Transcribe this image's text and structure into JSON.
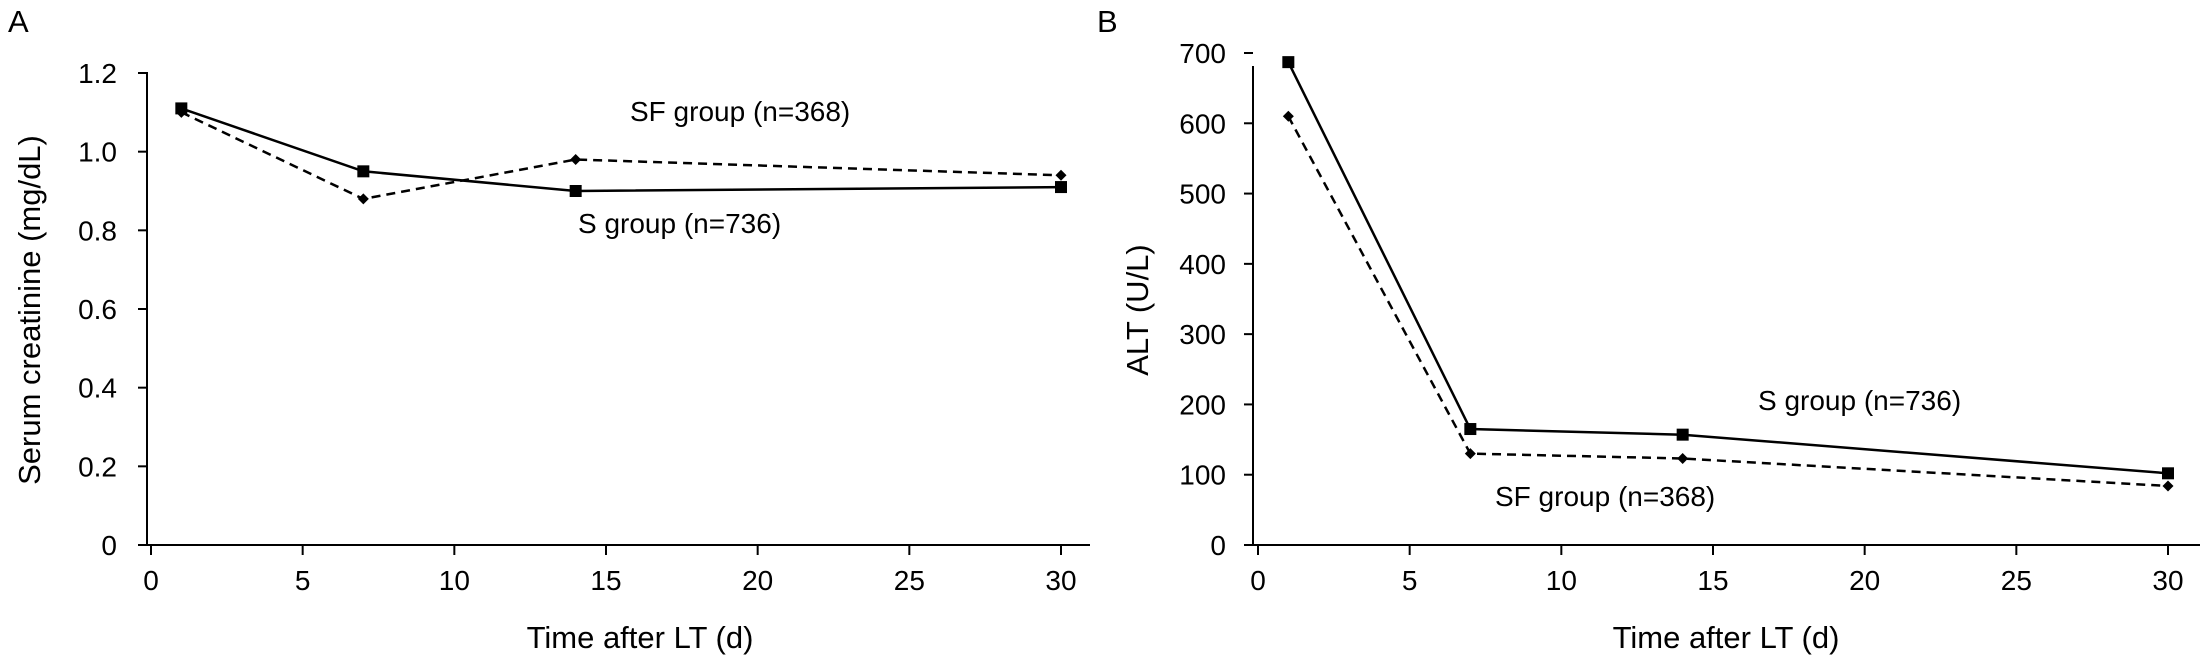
{
  "panels": [
    "A",
    "B"
  ],
  "chart_data": [
    {
      "type": "line",
      "panel_label": "A",
      "xlabel": "Time after LT (d)",
      "ylabel": "Serum creatinine (mg/dL)",
      "x": [
        1,
        7,
        14,
        30
      ],
      "xlim": [
        0,
        30
      ],
      "ylim": [
        0,
        1.2
      ],
      "xticks": [
        "0",
        "5",
        "10",
        "15",
        "20",
        "25",
        "30"
      ],
      "yticks": [
        "0",
        "0.2",
        "0.4",
        "0.6",
        "0.8",
        "1.0",
        "1.2"
      ],
      "grid": false,
      "series": [
        {
          "values": [
            1.11,
            0.95,
            0.9,
            0.91
          ],
          "line": "solid",
          "marker": "square"
        },
        {
          "values": [
            1.1,
            0.88,
            0.98,
            0.94
          ],
          "line": "dashed",
          "marker": "diamond"
        }
      ],
      "annotations": [
        "SF group (n=368)",
        "S group (n=736)"
      ]
    },
    {
      "type": "line",
      "panel_label": "B",
      "xlabel": "Time after LT (d)",
      "ylabel": "ALT (U/L)",
      "x": [
        1,
        7,
        14,
        30
      ],
      "xlim": [
        0,
        30
      ],
      "ylim": [
        0,
        700
      ],
      "xticks": [
        "0",
        "5",
        "10",
        "15",
        "20",
        "25",
        "30"
      ],
      "yticks": [
        "0",
        "100",
        "200",
        "300",
        "400",
        "500",
        "600",
        "700"
      ],
      "grid": false,
      "series": [
        {
          "values": [
            687,
            165,
            157,
            102
          ],
          "line": "solid",
          "marker": "square"
        },
        {
          "values": [
            610,
            130,
            123,
            84
          ],
          "line": "dashed",
          "marker": "diamond"
        }
      ],
      "annotations": [
        "S group (n=736)",
        "SF group (n=368)"
      ]
    }
  ]
}
